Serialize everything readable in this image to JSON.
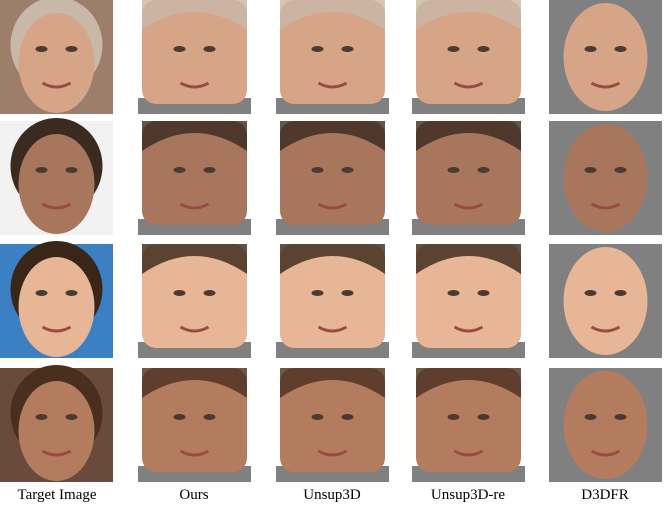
{
  "figure": {
    "columns": [
      "Target Image",
      "Ours",
      "Unsup3D",
      "Unsup3D-re",
      "D3DFR"
    ]
  }
}
